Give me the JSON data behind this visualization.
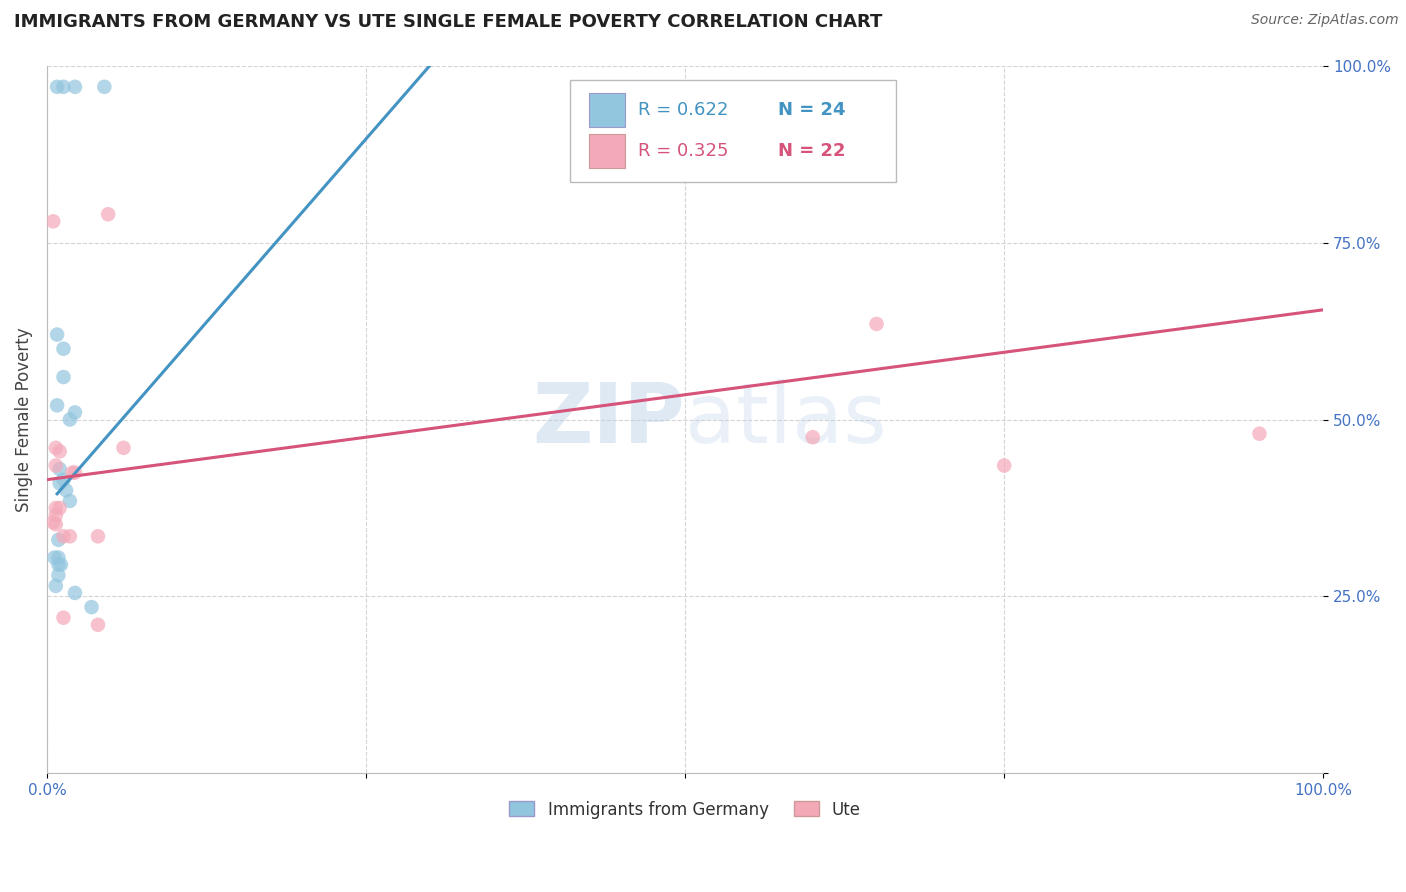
{
  "title": "IMMIGRANTS FROM GERMANY VS UTE SINGLE FEMALE POVERTY CORRELATION CHART",
  "source": "Source: ZipAtlas.com",
  "ylabel": "Single Female Poverty",
  "xlim": [
    0,
    1.0
  ],
  "ylim": [
    0,
    1.0
  ],
  "xtick_positions": [
    0.0,
    0.25,
    0.5,
    0.75,
    1.0
  ],
  "xtick_labels": [
    "0.0%",
    "",
    "",
    "",
    "100.0%"
  ],
  "ytick_positions": [
    0.0,
    0.25,
    0.5,
    0.75,
    1.0
  ],
  "ytick_labels": [
    "",
    "25.0%",
    "50.0%",
    "75.0%",
    "100.0%"
  ],
  "blue_label": "Immigrants from Germany",
  "pink_label": "Ute",
  "blue_R": "R = 0.622",
  "blue_N": "N = 24",
  "pink_R": "R = 0.325",
  "pink_N": "N = 22",
  "blue_color": "#92c5de",
  "pink_color": "#f4a9b8",
  "blue_line_color": "#4393c3",
  "pink_line_color": "#d6537a",
  "blue_scatter": [
    [
      0.008,
      0.97
    ],
    [
      0.013,
      0.97
    ],
    [
      0.022,
      0.97
    ],
    [
      0.045,
      0.97
    ],
    [
      0.008,
      0.62
    ],
    [
      0.013,
      0.6
    ],
    [
      0.013,
      0.56
    ],
    [
      0.008,
      0.52
    ],
    [
      0.018,
      0.5
    ],
    [
      0.022,
      0.51
    ],
    [
      0.01,
      0.43
    ],
    [
      0.01,
      0.41
    ],
    [
      0.013,
      0.415
    ],
    [
      0.015,
      0.4
    ],
    [
      0.018,
      0.385
    ],
    [
      0.009,
      0.33
    ],
    [
      0.006,
      0.305
    ],
    [
      0.009,
      0.305
    ],
    [
      0.009,
      0.295
    ],
    [
      0.011,
      0.295
    ],
    [
      0.009,
      0.28
    ],
    [
      0.007,
      0.265
    ],
    [
      0.022,
      0.255
    ],
    [
      0.035,
      0.235
    ]
  ],
  "pink_scatter": [
    [
      0.005,
      0.78
    ],
    [
      0.048,
      0.79
    ],
    [
      0.007,
      0.46
    ],
    [
      0.01,
      0.455
    ],
    [
      0.007,
      0.435
    ],
    [
      0.02,
      0.425
    ],
    [
      0.022,
      0.425
    ],
    [
      0.007,
      0.375
    ],
    [
      0.01,
      0.375
    ],
    [
      0.007,
      0.365
    ],
    [
      0.005,
      0.355
    ],
    [
      0.007,
      0.352
    ],
    [
      0.013,
      0.335
    ],
    [
      0.018,
      0.335
    ],
    [
      0.04,
      0.335
    ],
    [
      0.06,
      0.46
    ],
    [
      0.65,
      0.635
    ],
    [
      0.6,
      0.475
    ],
    [
      0.75,
      0.435
    ],
    [
      0.95,
      0.48
    ],
    [
      0.013,
      0.22
    ],
    [
      0.04,
      0.21
    ]
  ],
  "blue_line_x": [
    0.008,
    0.3
  ],
  "blue_line_y": [
    0.395,
    1.0
  ],
  "pink_line_x": [
    0.0,
    1.0
  ],
  "pink_line_y": [
    0.415,
    0.655
  ],
  "legend_box_color": "#ffffff",
  "legend_border_color": "#cccccc",
  "watermark_color": "#c8ddf0",
  "grid_color": "#d0d0d0",
  "title_fontsize": 13,
  "axis_label_fontsize": 11,
  "tick_fontsize": 11,
  "right_tick_color": "#4472c4",
  "bottom_tick_color": "#4472c4"
}
